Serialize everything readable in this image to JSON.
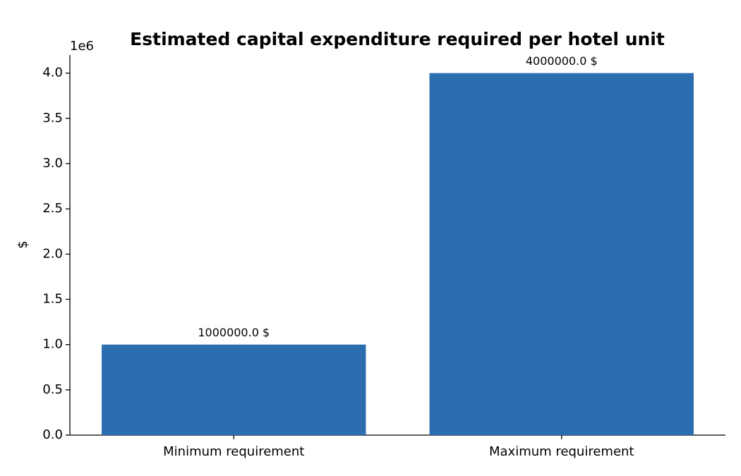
{
  "chart_data": {
    "type": "bar",
    "title": "Estimated capital expenditure required per hotel unit",
    "ylabel": "$",
    "y_offset_text": "1e6",
    "categories": [
      "Minimum requirement",
      "Maximum requirement"
    ],
    "values": [
      1000000,
      4000000
    ],
    "value_labels": [
      "1000000.0 $",
      "4000000.0 $"
    ],
    "color": "#2c6db0",
    "ylim": [
      0,
      4200000
    ],
    "yticks": [
      {
        "value": 0,
        "label": "0.0"
      },
      {
        "value": 500000,
        "label": "0.5"
      },
      {
        "value": 1000000,
        "label": "1.0"
      },
      {
        "value": 1500000,
        "label": "1.5"
      },
      {
        "value": 2000000,
        "label": "2.0"
      },
      {
        "value": 2500000,
        "label": "2.5"
      },
      {
        "value": 3000000,
        "label": "3.0"
      },
      {
        "value": 3500000,
        "label": "3.5"
      },
      {
        "value": 4000000,
        "label": "4.0"
      }
    ],
    "grid": false
  }
}
